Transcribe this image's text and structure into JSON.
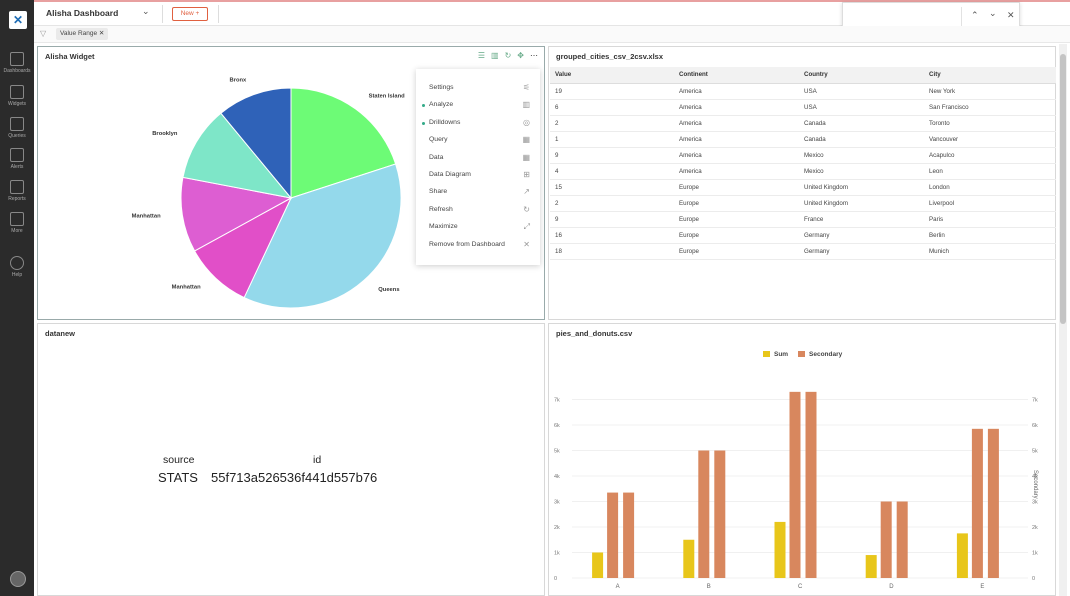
{
  "app": {
    "dashboard_title": "Alisha Dashboard",
    "new_button": "New +"
  },
  "sidebar": {
    "items": [
      {
        "label": "Dashboards",
        "icon": "dashboard-icon"
      },
      {
        "label": "Widgets",
        "icon": "chart-icon"
      },
      {
        "label": "Queries",
        "icon": "query-icon"
      },
      {
        "label": "Alerts",
        "icon": "alert-icon"
      },
      {
        "label": "Reports",
        "icon": "report-icon"
      },
      {
        "label": "More",
        "icon": "more-icon"
      },
      {
        "label": "Help",
        "icon": "help-icon"
      }
    ]
  },
  "filter": {
    "chip_label": "Value Range"
  },
  "widget1": {
    "title": "Alisha Widget",
    "pie_labels": [
      "Bronx",
      "Staten Island",
      "Brooklyn",
      "Manhattan",
      "Manhattan",
      "Queens"
    ],
    "menu": [
      {
        "label": "Settings",
        "icon": "sliders-icon"
      },
      {
        "label": "Analyze",
        "icon": "bar-chart-icon",
        "dot": true
      },
      {
        "label": "Drilldowns",
        "icon": "target-icon",
        "dot": true
      },
      {
        "label": "Query",
        "icon": "query-icon"
      },
      {
        "label": "Data",
        "icon": "grid-icon"
      },
      {
        "label": "Data Diagram",
        "icon": "diagram-icon"
      },
      {
        "label": "Share",
        "icon": "share-icon"
      },
      {
        "label": "Refresh",
        "icon": "refresh-icon"
      },
      {
        "label": "Maximize",
        "icon": "maximize-icon"
      },
      {
        "label": "Remove from Dashboard",
        "icon": "close-icon"
      }
    ]
  },
  "widget2": {
    "title": "grouped_cities_csv_2csv.xlsx",
    "columns": [
      "Value",
      "Continent",
      "Country",
      "City"
    ],
    "rows": [
      [
        "19",
        "America",
        "USA",
        "New York"
      ],
      [
        "6",
        "America",
        "USA",
        "San Francisco"
      ],
      [
        "2",
        "America",
        "Canada",
        "Toronto"
      ],
      [
        "1",
        "America",
        "Canada",
        "Vancouver"
      ],
      [
        "9",
        "America",
        "Mexico",
        "Acapulco"
      ],
      [
        "4",
        "America",
        "Mexico",
        "Leon"
      ],
      [
        "15",
        "Europe",
        "United Kingdom",
        "London"
      ],
      [
        "2",
        "Europe",
        "United Kingdom",
        "Liverpool"
      ],
      [
        "9",
        "Europe",
        "France",
        "Paris"
      ],
      [
        "16",
        "Europe",
        "Germany",
        "Berlin"
      ],
      [
        "18",
        "Europe",
        "Germany",
        "Munich"
      ]
    ]
  },
  "widget3": {
    "title": "datanew",
    "source_label": "source",
    "id_label": "id",
    "source_value": "STATS",
    "id_value": "55f713a526536f441d557b76"
  },
  "widget4": {
    "title": "pies_and_donuts.csv",
    "legend": [
      "Sum",
      "Secondary"
    ],
    "y_ticks": [
      "0",
      "1k",
      "2k",
      "3k",
      "4k",
      "5k",
      "6k",
      "7k"
    ],
    "secondary_axis_label": "Secondary"
  },
  "chart_data": [
    {
      "type": "pie",
      "categories": [
        "Staten Island",
        "Queens",
        "Manhattan",
        "Manhattan",
        "Brooklyn",
        "Bronx"
      ],
      "values": [
        20,
        37,
        10,
        11,
        11,
        11
      ],
      "colors": [
        "#6dfb76",
        "#94d9eb",
        "#e14fc8",
        "#dd5ed2",
        "#7ee6c8",
        "#2f62b8"
      ]
    },
    {
      "type": "bar",
      "categories": [
        "A",
        "B",
        "C",
        "D",
        "E"
      ],
      "series": [
        {
          "name": "Sum",
          "values": [
            1000,
            1500,
            2200,
            900,
            1750
          ],
          "color": "#e8c61a"
        },
        {
          "name": "Secondary",
          "values": [
            3350,
            5000,
            7300,
            3000,
            5850
          ],
          "color": "#d8875e"
        },
        {
          "values": [
            3350,
            5000,
            7300,
            3000,
            5850
          ],
          "color": "#d8875e"
        }
      ],
      "ylim": [
        0,
        8000
      ],
      "ylabel": "",
      "y2label": "Secondary"
    }
  ]
}
